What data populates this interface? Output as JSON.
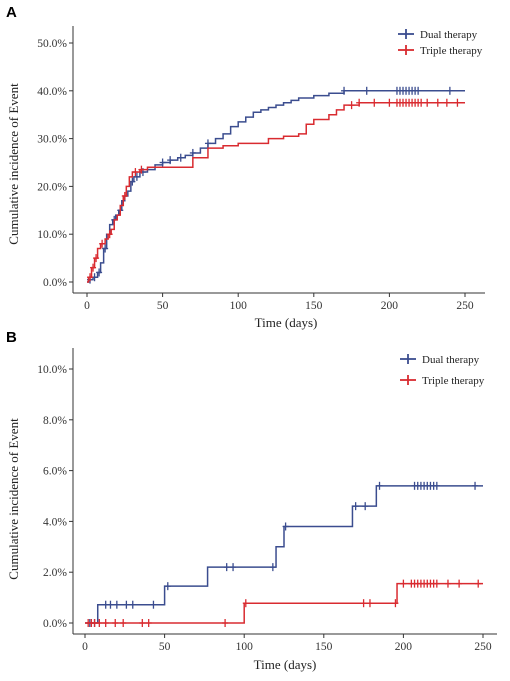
{
  "chart_data": [
    {
      "panel": "A",
      "type": "line",
      "title": "",
      "xlabel": "Time (days)",
      "ylabel": "Cumulative incidence of Event",
      "xlim": [
        0,
        250
      ],
      "ylim": [
        0,
        0.5
      ],
      "xticks": [
        0,
        50,
        100,
        150,
        200,
        250
      ],
      "xtick_labels": [
        "0",
        "50",
        "100",
        "150",
        "200",
        "250"
      ],
      "yticks": [
        0,
        0.1,
        0.2,
        0.3,
        0.4,
        0.5
      ],
      "ytick_labels": [
        "0.0%",
        "10.0%",
        "20.0%",
        "30.0%",
        "40.0%",
        "50.0%"
      ],
      "legend_position": "top-right",
      "series": [
        {
          "name": "Dual therapy",
          "color": "#3b4d8f",
          "x": [
            0,
            1,
            4,
            7,
            9,
            11,
            13,
            15,
            17,
            19,
            21,
            23,
            25,
            27,
            29,
            31,
            35,
            40,
            45,
            50,
            55,
            60,
            65,
            70,
            75,
            80,
            85,
            90,
            95,
            100,
            105,
            110,
            115,
            120,
            125,
            130,
            135,
            140,
            150,
            155,
            160,
            165,
            170,
            185,
            250
          ],
          "y": [
            0,
            0.005,
            0.01,
            0.02,
            0.04,
            0.07,
            0.1,
            0.12,
            0.13,
            0.14,
            0.15,
            0.17,
            0.18,
            0.19,
            0.21,
            0.22,
            0.23,
            0.235,
            0.245,
            0.25,
            0.255,
            0.26,
            0.265,
            0.27,
            0.28,
            0.29,
            0.3,
            0.31,
            0.325,
            0.335,
            0.345,
            0.355,
            0.36,
            0.365,
            0.37,
            0.375,
            0.38,
            0.385,
            0.39,
            0.39,
            0.395,
            0.395,
            0.4,
            0.4,
            0.4
          ],
          "censor_x": [
            2,
            5,
            8,
            12,
            18,
            22,
            30,
            33,
            37,
            50,
            55,
            62,
            70,
            80,
            170,
            185,
            205,
            207,
            209,
            211,
            213,
            215,
            217,
            219,
            240
          ],
          "censor_y": [
            0.005,
            0.01,
            0.02,
            0.07,
            0.13,
            0.15,
            0.21,
            0.22,
            0.23,
            0.25,
            0.255,
            0.26,
            0.27,
            0.29,
            0.4,
            0.4,
            0.4,
            0.4,
            0.4,
            0.4,
            0.4,
            0.4,
            0.4,
            0.4,
            0.4
          ]
        },
        {
          "name": "Triple therapy",
          "color": "#d92b30",
          "x": [
            0,
            1,
            3,
            5,
            7,
            9,
            12,
            14,
            16,
            18,
            20,
            22,
            24,
            26,
            28,
            30,
            35,
            40,
            50,
            60,
            70,
            80,
            90,
            100,
            110,
            120,
            130,
            140,
            145,
            150,
            160,
            165,
            170,
            175,
            180,
            250
          ],
          "y": [
            0,
            0.01,
            0.03,
            0.05,
            0.07,
            0.08,
            0.09,
            0.1,
            0.11,
            0.13,
            0.14,
            0.16,
            0.18,
            0.2,
            0.22,
            0.23,
            0.235,
            0.24,
            0.24,
            0.24,
            0.26,
            0.28,
            0.285,
            0.29,
            0.29,
            0.3,
            0.305,
            0.31,
            0.33,
            0.34,
            0.35,
            0.36,
            0.37,
            0.37,
            0.375,
            0.375
          ],
          "censor_x": [
            2,
            4,
            6,
            10,
            15,
            25,
            32,
            36,
            175,
            180,
            190,
            200,
            205,
            207,
            209,
            211,
            213,
            215,
            217,
            219,
            221,
            225,
            232,
            238,
            245
          ],
          "censor_y": [
            0.01,
            0.03,
            0.05,
            0.08,
            0.1,
            0.18,
            0.23,
            0.235,
            0.37,
            0.375,
            0.375,
            0.375,
            0.375,
            0.375,
            0.375,
            0.375,
            0.375,
            0.375,
            0.375,
            0.375,
            0.375,
            0.375,
            0.375,
            0.375,
            0.375
          ]
        }
      ]
    },
    {
      "panel": "B",
      "type": "line",
      "title": "",
      "xlabel": "Time (days)",
      "ylabel": "Cumulative incidence of Event",
      "xlim": [
        0,
        250
      ],
      "ylim": [
        0,
        0.1
      ],
      "xticks": [
        0,
        50,
        100,
        150,
        200,
        250
      ],
      "xtick_labels": [
        "0",
        "50",
        "100",
        "150",
        "200",
        "250"
      ],
      "yticks": [
        0,
        0.02,
        0.04,
        0.06,
        0.08,
        0.1
      ],
      "ytick_labels": [
        "0.0%",
        "2.0%",
        "4.0%",
        "6.0%",
        "8.0%",
        "10.0%"
      ],
      "legend_position": "top-right",
      "series": [
        {
          "name": "Dual therapy",
          "color": "#3b4d8f",
          "x": [
            0,
            8,
            50,
            77,
            120,
            122,
            125,
            168,
            183,
            250
          ],
          "y": [
            0,
            0.0072,
            0.0145,
            0.022,
            0.03,
            0.03,
            0.038,
            0.046,
            0.054,
            0.054
          ],
          "censor_x": [
            3,
            6,
            13,
            16,
            20,
            26,
            30,
            43,
            52,
            89,
            93,
            118,
            126,
            170,
            176,
            185,
            207,
            209,
            211,
            213,
            215,
            217,
            219,
            221,
            245
          ],
          "censor_y": [
            0,
            0,
            0.0072,
            0.0072,
            0.0072,
            0.0072,
            0.0072,
            0.0072,
            0.0145,
            0.022,
            0.022,
            0.022,
            0.038,
            0.046,
            0.046,
            0.054,
            0.054,
            0.054,
            0.054,
            0.054,
            0.054,
            0.054,
            0.054,
            0.054,
            0.054
          ]
        },
        {
          "name": "Triple therapy",
          "color": "#d92b30",
          "x": [
            0,
            100,
            196,
            250
          ],
          "y": [
            0,
            0.0078,
            0.0155,
            0.0155
          ],
          "censor_x": [
            2,
            4,
            6,
            9,
            13,
            19,
            24,
            36,
            40,
            88,
            101,
            175,
            179,
            195,
            200,
            205,
            207,
            209,
            211,
            213,
            215,
            217,
            219,
            221,
            228,
            235,
            247
          ],
          "censor_y": [
            0,
            0,
            0,
            0,
            0,
            0,
            0,
            0,
            0,
            0,
            0.0078,
            0.0078,
            0.0078,
            0.0078,
            0.0155,
            0.0155,
            0.0155,
            0.0155,
            0.0155,
            0.0155,
            0.0155,
            0.0155,
            0.0155,
            0.0155,
            0.0155,
            0.0155,
            0.0155
          ]
        }
      ]
    }
  ]
}
